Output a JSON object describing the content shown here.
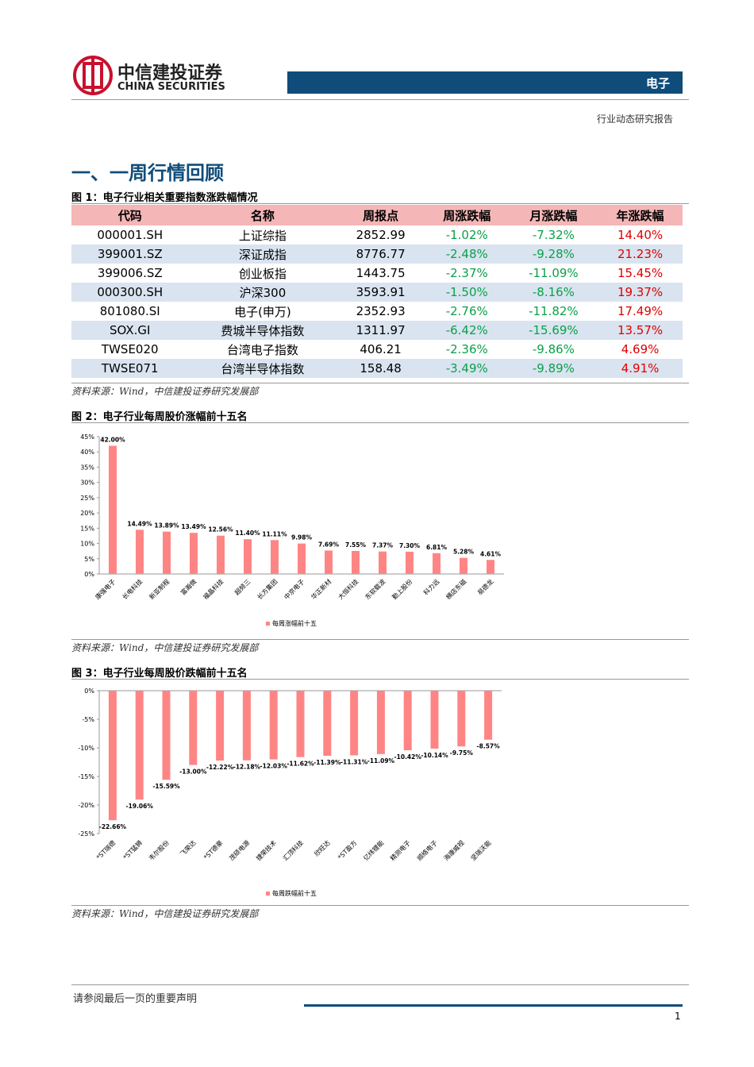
{
  "header": {
    "brand_cn": "中信建投证券",
    "brand_en": "CHINA SECURITIES",
    "sector": "电子",
    "report_type": "行业动态研究报告"
  },
  "section_title": "一、一周行情回顾",
  "figure1": {
    "title": "图 1：电子行业相关重要指数涨跌幅情况",
    "table": {
      "header": [
        "代码",
        "名称",
        "周报点",
        "周涨跌幅",
        "月涨跌幅",
        "年涨跌幅"
      ],
      "rows": [
        [
          "000001.SH",
          "上证综指",
          "2852.99",
          "-1.02%",
          "-7.32%",
          "14.40%"
        ],
        [
          "399001.SZ",
          "深证成指",
          "8776.77",
          "-2.48%",
          "-9.28%",
          "21.23%"
        ],
        [
          "399006.SZ",
          "创业板指",
          "1443.75",
          "-2.37%",
          "-11.09%",
          "15.45%"
        ],
        [
          "000300.SH",
          "沪深300",
          "3593.91",
          "-1.50%",
          "-8.16%",
          "19.37%"
        ],
        [
          "801080.SI",
          "电子(申万)",
          "2352.93",
          "-2.76%",
          "-11.82%",
          "17.49%"
        ],
        [
          "SOX.GI",
          "费城半导体指数",
          "1311.97",
          "-6.42%",
          "-15.69%",
          "13.57%"
        ],
        [
          "TWSE020",
          "台湾电子指数",
          "406.21",
          "-2.36%",
          "-9.86%",
          "4.69%"
        ],
        [
          "TWSE071",
          "台湾半导体指数",
          "158.48",
          "-3.49%",
          "-9.89%",
          "4.91%"
        ]
      ]
    },
    "source": "资料来源：Wind，中信建投证券研究发展部"
  },
  "figure2": {
    "title": "图 2：电子行业每周股价涨幅前十五名",
    "source": "资料来源：Wind，中信建投证券研究发展部"
  },
  "figure3": {
    "title": "图 3：电子行业每周股价跌幅前十五名",
    "source": "资料来源：Wind，中信建投证券研究发展部"
  },
  "chart_data": [
    {
      "type": "bar",
      "categories": [
        "康强电子",
        "长电科技",
        "新亚制程",
        "富瀚微",
        "福晶科技",
        "超频三",
        "长方集团",
        "中京电子",
        "华正新材",
        "大恒科技",
        "东软载波",
        "勤上股份",
        "科力远",
        "横店东磁",
        "易德龙"
      ],
      "series": [
        {
          "name": "每周涨幅前十五",
          "color": "#ff8585",
          "values": [
            42.0,
            14.49,
            13.89,
            13.49,
            12.56,
            11.4,
            11.11,
            9.98,
            7.69,
            7.55,
            7.37,
            7.3,
            6.81,
            5.28,
            4.61
          ],
          "value_labels": [
            "42.00%",
            "14.49%",
            "13.89%",
            "13.49%",
            "12.56%",
            "11.40%",
            "11.11%",
            "9.98%",
            "7.69%",
            "7.55%",
            "7.37%",
            "7.30%",
            "6.81%",
            "5.28%",
            "4.61%"
          ]
        }
      ],
      "ylim": [
        0,
        45
      ],
      "yticks": [
        {
          "value": 0,
          "label": "0%"
        },
        {
          "value": 5,
          "label": "5%"
        },
        {
          "value": 10,
          "label": "10%"
        },
        {
          "value": 15,
          "label": "15%"
        },
        {
          "value": 20,
          "label": "20%"
        },
        {
          "value": 25,
          "label": "25%"
        },
        {
          "value": 30,
          "label": "30%"
        },
        {
          "value": 35,
          "label": "35%"
        },
        {
          "value": 40,
          "label": "40%"
        },
        {
          "value": 45,
          "label": "45%"
        }
      ]
    },
    {
      "type": "bar",
      "categories": [
        "*ST瑞德",
        "*ST猛狮",
        "韦尔股份",
        "飞荣达",
        "*ST德豪",
        "茂硕电源",
        "捷荣技术",
        "汇顶科技",
        "欣旺达",
        "*ST盈方",
        "亿纬锂能",
        "精测电子",
        "顺络电子",
        "海康威视",
        "坚瑞沃能"
      ],
      "series": [
        {
          "name": "每周跌幅前十五",
          "color": "#ff8585",
          "values": [
            -22.66,
            -19.06,
            -15.59,
            -13.0,
            -12.22,
            -12.18,
            -12.03,
            -11.62,
            -11.39,
            -11.31,
            -11.09,
            -10.42,
            -10.14,
            -9.75,
            -8.57
          ],
          "value_labels": [
            "-22.66%",
            "-19.06%",
            "-15.59%",
            "-13.00%",
            "-12.22%",
            "-12.18%",
            "-12.03%",
            "-11.62%",
            "-11.39%",
            "-11.31%",
            "-11.09%",
            "-10.42%",
            "-10.14%",
            "-9.75%",
            "-8.57%"
          ]
        }
      ],
      "ylim": [
        -25,
        0
      ],
      "yticks": [
        {
          "value": -25,
          "label": "-25%"
        },
        {
          "value": -20,
          "label": "-20%"
        },
        {
          "value": -15,
          "label": "-15%"
        },
        {
          "value": -10,
          "label": "-10%"
        },
        {
          "value": -5,
          "label": "-5%"
        },
        {
          "value": 0,
          "label": "0%"
        }
      ]
    }
  ],
  "footer": {
    "disclaimer": "请参阅最后一页的重要声明",
    "page": "1"
  }
}
